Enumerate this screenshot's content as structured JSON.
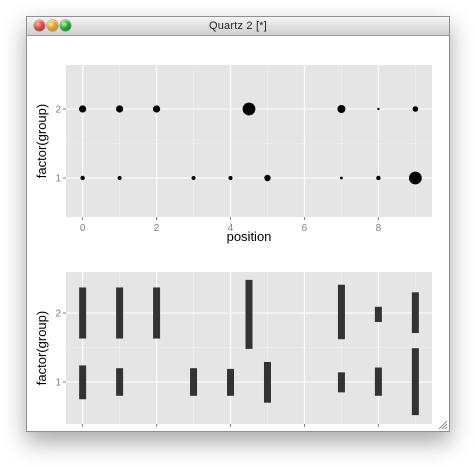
{
  "window": {
    "title": "Quartz 2 [*]"
  },
  "panel_top": {
    "xlabel": "position",
    "ylabel": "factor(group)",
    "x_ticks": [
      "0",
      "2",
      "4",
      "6",
      "8"
    ],
    "y_ticks": [
      "1",
      "2"
    ]
  },
  "panel_bottom": {
    "xlabel": "",
    "ylabel": "factor(group)",
    "x_ticks": [
      "0",
      "2",
      "4",
      "6",
      "8"
    ],
    "y_ticks": [
      "1",
      "2"
    ]
  },
  "colors": {
    "panel_bg": "#e5e5e5",
    "grid_major": "#ffffff",
    "grid_minor": "#f2f2f2",
    "mark": "#000000",
    "bar": "#333333",
    "tick_text": "#7f7f7f"
  },
  "chart_data": [
    {
      "type": "scatter",
      "xlabel": "position",
      "ylabel": "factor(group)",
      "xlim": [
        -0.45,
        9.45
      ],
      "categories_y": [
        "1",
        "2"
      ],
      "x_ticks": [
        0,
        2,
        4,
        6,
        8
      ],
      "series": [
        {
          "group": "2",
          "x": [
            0,
            1,
            2,
            4.5,
            7,
            8,
            9
          ],
          "size": [
            1.8,
            1.8,
            1.8,
            3.2,
            2.0,
            0.6,
            1.4
          ]
        },
        {
          "group": "1",
          "x": [
            0,
            1,
            3,
            4,
            5,
            7,
            8,
            9
          ],
          "size": [
            1.1,
            1.0,
            1.0,
            1.0,
            1.6,
            0.7,
            1.1,
            3.2
          ]
        }
      ]
    },
    {
      "type": "bar",
      "xlabel": "",
      "ylabel": "factor(group)",
      "xlim": [
        -0.45,
        9.45
      ],
      "categories_y": [
        "1",
        "2"
      ],
      "x_ticks": [
        0,
        2,
        4,
        6,
        8
      ],
      "series": [
        {
          "group": "2",
          "x": [
            0,
            1,
            2,
            4.5,
            7,
            8,
            9
          ],
          "ymin": [
            1.63,
            1.63,
            1.63,
            1.48,
            1.62,
            1.87,
            1.71
          ],
          "ymax": [
            2.37,
            2.37,
            2.37,
            2.48,
            2.41,
            2.09,
            2.3
          ]
        },
        {
          "group": "1",
          "x": [
            0,
            1,
            3,
            4,
            5,
            7,
            8,
            9
          ],
          "ymin": [
            0.75,
            0.8,
            0.8,
            0.8,
            0.7,
            0.85,
            0.8,
            0.52
          ],
          "ymax": [
            1.24,
            1.2,
            1.2,
            1.19,
            1.29,
            1.14,
            1.21,
            1.49
          ]
        }
      ]
    }
  ]
}
